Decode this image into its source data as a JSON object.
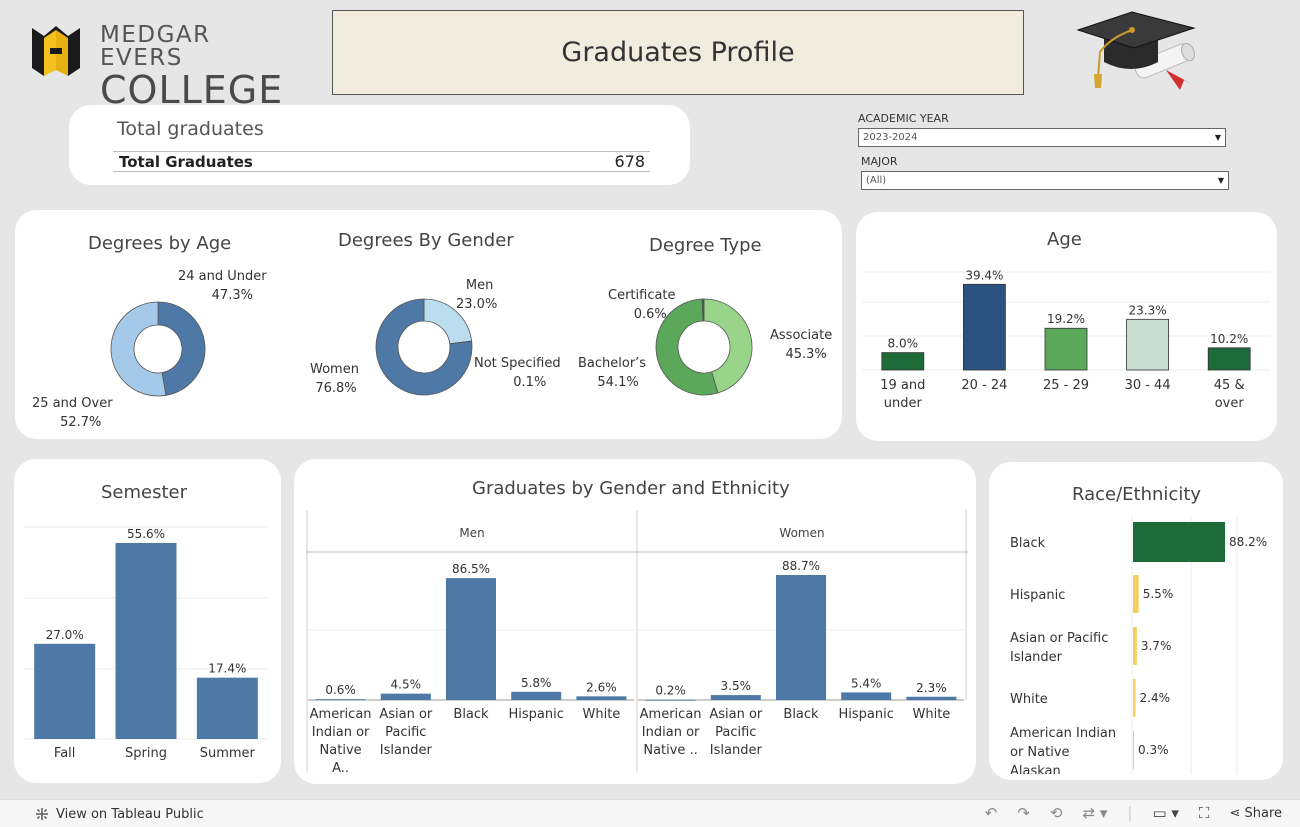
{
  "header": {
    "logo_line1": "MEDGAR EVERS",
    "logo_line2": "COLLEGE",
    "title": "Graduates Profile"
  },
  "total": {
    "heading": "Total graduates",
    "label": "Total Graduates",
    "value": "678"
  },
  "filters": {
    "academic_year": {
      "label": "ACADEMIC YEAR",
      "value": "2023-2024"
    },
    "major": {
      "label": "MAJOR",
      "value": "(All)"
    }
  },
  "colors": {
    "blue_dark": "#4e79a7",
    "blue_light": "#a5c9e8",
    "navy": "#2c5282",
    "green_dark": "#1e6b3a",
    "green_mid": "#5ba85a",
    "green_light": "#98d48a",
    "mint": "#c9dcd2",
    "yellow": "#f2cf63",
    "bar_blue": "#4e79a7"
  },
  "chart_data": [
    {
      "id": "age_donut",
      "type": "pie",
      "title": "Degrees by Age",
      "slices": [
        {
          "label": "24 and Under",
          "value": 47.3,
          "display": "47.3%",
          "color": "#4e79a7"
        },
        {
          "label": "25 and Over",
          "value": 52.7,
          "display": "52.7%",
          "color": "#a5c9e8"
        }
      ]
    },
    {
      "id": "gender_donut",
      "type": "pie",
      "title": "Degrees By Gender",
      "slices": [
        {
          "label": "Men",
          "value": 23.0,
          "display": "23.0%",
          "color": "#bcdcf0"
        },
        {
          "label": "Not Specified",
          "value": 0.1,
          "display": "0.1%",
          "color": "#2c5282"
        },
        {
          "label": "Women",
          "value": 76.8,
          "display": "76.8%",
          "color": "#4e79a7"
        }
      ]
    },
    {
      "id": "degree_donut",
      "type": "pie",
      "title": "Degree Type",
      "slices": [
        {
          "label": "Associate",
          "value": 45.3,
          "display": "45.3%",
          "color": "#98d48a"
        },
        {
          "label": "Bachelor’s",
          "value": 54.1,
          "display": "54.1%",
          "color": "#5ba85a"
        },
        {
          "label": "Certificate",
          "value": 0.6,
          "display": "0.6%",
          "color": "#1e6b3a"
        }
      ]
    },
    {
      "id": "age_bar",
      "type": "bar",
      "title": "Age",
      "categories": [
        "19 and under",
        "20 - 24",
        "25 - 29",
        "30 - 44",
        "45 & over"
      ],
      "values": [
        8.0,
        39.4,
        19.2,
        23.3,
        10.2
      ],
      "labels": [
        "8.0%",
        "39.4%",
        "19.2%",
        "23.3%",
        "10.2%"
      ],
      "colors": [
        "#1e6b3a",
        "#2c5282",
        "#5ba85a",
        "#c9dcd2",
        "#1e6b3a"
      ],
      "ylim": [
        0,
        40
      ]
    },
    {
      "id": "semester_bar",
      "type": "bar",
      "title": "Semester",
      "categories": [
        "Fall",
        "Spring",
        "Summer"
      ],
      "values": [
        27.0,
        55.6,
        17.4
      ],
      "labels": [
        "27.0%",
        "55.6%",
        "17.4%"
      ],
      "ylim": [
        0,
        56
      ]
    },
    {
      "id": "gender_ethnicity_bar",
      "type": "bar",
      "title": "Graduates by Gender and Ethnicity",
      "panels": [
        {
          "name": "Men",
          "categories": [
            "American Indian or Native A..",
            "Asian or Pacific Islander",
            "Black",
            "Hispanic",
            "White"
          ],
          "values": [
            0.6,
            4.5,
            86.5,
            5.8,
            2.6
          ],
          "labels": [
            "0.6%",
            "4.5%",
            "86.5%",
            "5.8%",
            "2.6%"
          ]
        },
        {
          "name": "Women",
          "categories": [
            "American Indian or Native ..",
            "Asian or Pacific Islander",
            "Black",
            "Hispanic",
            "White"
          ],
          "values": [
            0.2,
            3.5,
            88.7,
            5.4,
            2.3
          ],
          "labels": [
            "0.2%",
            "3.5%",
            "88.7%",
            "5.4%",
            "2.3%"
          ]
        }
      ],
      "ylim": [
        0,
        90
      ]
    },
    {
      "id": "race_bar",
      "type": "bar",
      "orientation": "horizontal",
      "title": "Race/Ethnicity",
      "categories": [
        "Black",
        "Hispanic",
        "Asian or Pacific Islander",
        "White",
        "American Indian or Native Alaskan"
      ],
      "values": [
        88.2,
        5.5,
        3.7,
        2.4,
        0.3
      ],
      "labels": [
        "88.2%",
        "5.5%",
        "3.7%",
        "2.4%",
        "0.3%"
      ],
      "colors": [
        "#1e6b3a",
        "#f2cf63",
        "#f2cf63",
        "#f2cf63",
        "#f2cf63"
      ],
      "xlim": [
        0,
        88.2
      ]
    }
  ],
  "footer": {
    "view_link": "View on Tableau Public",
    "share": "Share"
  }
}
